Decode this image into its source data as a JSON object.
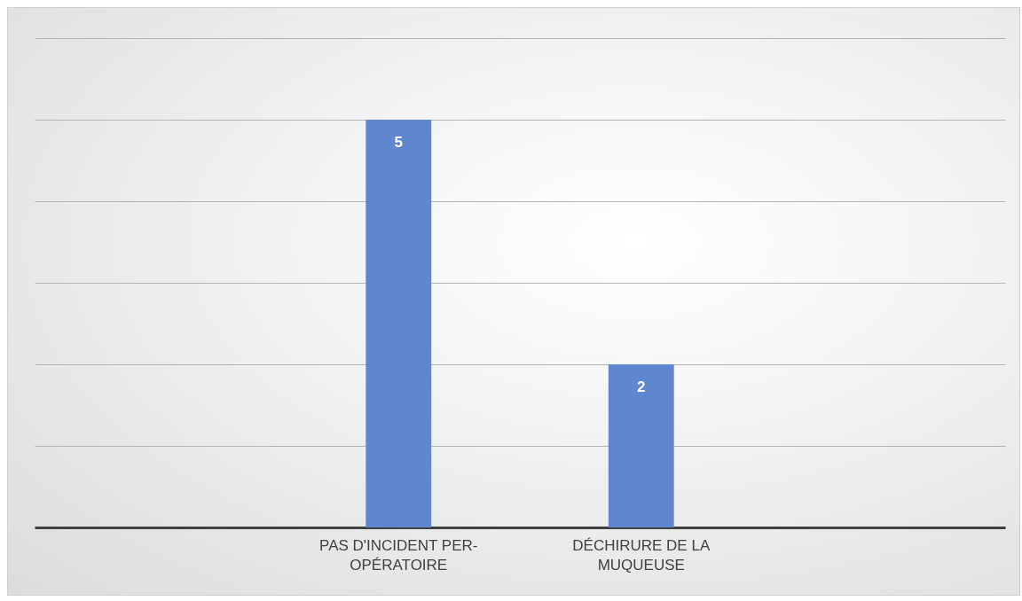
{
  "chart_data": {
    "type": "bar",
    "categories": [
      null,
      "PAS D'INCIDENT PER-OPÉRATOIRE",
      "DÉCHIRURE DE LA MUQUEUSE",
      null
    ],
    "values": [
      null,
      5,
      2,
      null
    ],
    "color": "#5f87cf",
    "ylim": [
      0,
      6
    ],
    "yticks": [
      0,
      1,
      2,
      3,
      4,
      5,
      6
    ],
    "grid": "y",
    "tick_labels": "x",
    "data_labels": true
  }
}
